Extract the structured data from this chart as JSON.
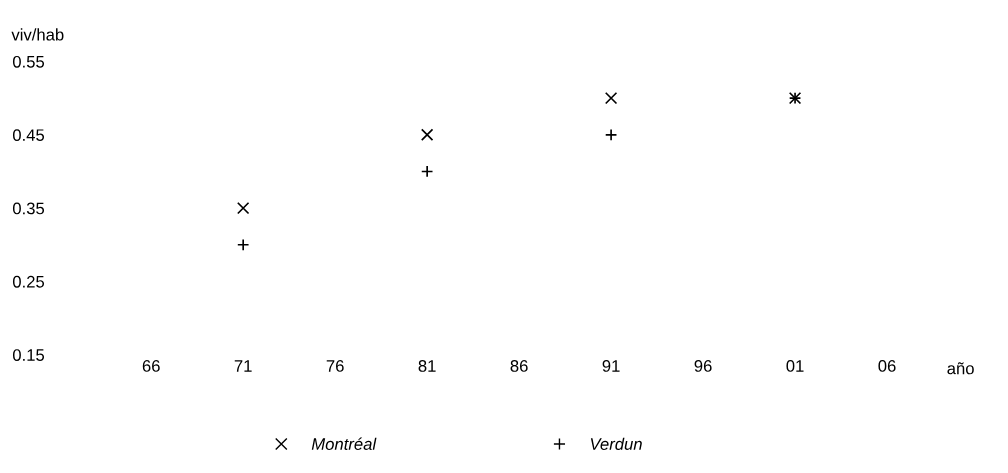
{
  "chart_data": {
    "type": "scatter",
    "ylabel": "viv/hab",
    "xlabel": "año",
    "x": [
      1971,
      1981,
      1991,
      2001
    ],
    "series": [
      {
        "name": "Montréal",
        "color": "#000000",
        "marker": "cross",
        "values": [
          0.35,
          0.45,
          0.5,
          0.5
        ]
      },
      {
        "name": "Verdun",
        "color": "#000000",
        "marker": "plus",
        "values": [
          0.3,
          0.4,
          0.45,
          0.5
        ]
      }
    ],
    "xlim": [
      1966,
      2006
    ],
    "xticks": [
      {
        "value": 1966,
        "label": "66"
      },
      {
        "value": 1971,
        "label": "71"
      },
      {
        "value": 1976,
        "label": "76"
      },
      {
        "value": 1981,
        "label": "81"
      },
      {
        "value": 1986,
        "label": "86"
      },
      {
        "value": 1991,
        "label": "91"
      },
      {
        "value": 1996,
        "label": "96"
      },
      {
        "value": 2001,
        "label": "01"
      },
      {
        "value": 2006,
        "label": "06"
      }
    ],
    "ylim": [
      0.15,
      0.55
    ],
    "yticks": [
      0.15,
      0.25,
      0.35,
      0.45,
      0.55
    ],
    "grid": false,
    "legend": "bottom"
  }
}
